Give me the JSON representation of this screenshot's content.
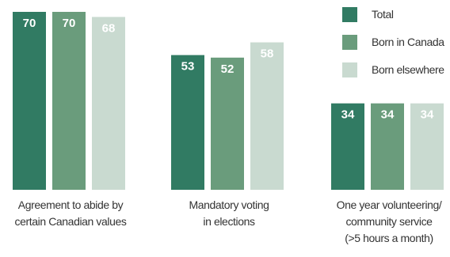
{
  "chart_data": {
    "type": "bar",
    "title": "",
    "categories": [
      "Agreement to abide by certain Canadian values",
      "Mandatory voting in elections",
      "One year volunteering/ community service (>5 hours a month)"
    ],
    "category_lines": [
      [
        "Agreement to abide by",
        "certain Canadian values"
      ],
      [
        "Mandatory voting",
        "in elections"
      ],
      [
        "One year volunteering/",
        "community service",
        "(>5 hours a month)"
      ]
    ],
    "series": [
      {
        "name": "Total",
        "color": "#317b63",
        "values": [
          70,
          53,
          34
        ]
      },
      {
        "name": "Born in Canada",
        "color": "#6a9c7c",
        "values": [
          70,
          52,
          34
        ]
      },
      {
        "name": "Born elsewhere",
        "color": "#c9dad0",
        "values": [
          68,
          58,
          34
        ]
      }
    ],
    "legend_position": "top-right",
    "ylim": [
      0,
      70
    ],
    "grid": false
  }
}
